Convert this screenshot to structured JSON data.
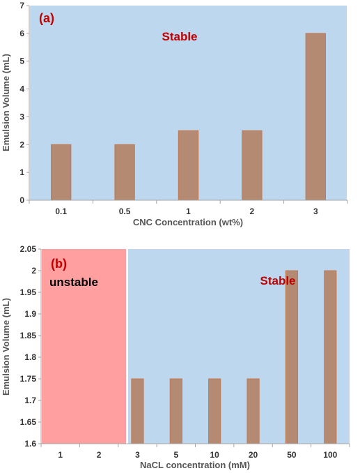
{
  "colors": {
    "stable_bg": "#bdd7ee",
    "unstable_bg": "#ff9f9f",
    "bar": "#b58a73",
    "bar_edge": "#c4784e",
    "red_text": "#c00000",
    "black_text": "#000000"
  },
  "chart_data": [
    {
      "type": "bar",
      "panel_label": "(a)",
      "xlabel": "CNC Concentration (wt%)",
      "ylabel": "Emulsion Volume (mL)",
      "categories": [
        "0.1",
        "0.5",
        "1",
        "2",
        "3"
      ],
      "values": [
        2,
        2,
        2.5,
        2.5,
        6
      ],
      "ylim": [
        0,
        7
      ],
      "yticks": [
        "0",
        "1",
        "2",
        "3",
        "4",
        "5",
        "6",
        "7"
      ],
      "regions": [
        {
          "label": "Stable",
          "from_category": 0,
          "to_category": 4,
          "color": "#bdd7ee",
          "label_color": "#c00000"
        }
      ],
      "grid": false
    },
    {
      "type": "bar",
      "panel_label": "(b)",
      "xlabel": "NaCL concentration (mM)",
      "ylabel": "Emulsion Volume (mL)",
      "categories": [
        "1",
        "2",
        "3",
        "5",
        "10",
        "20",
        "50",
        "100"
      ],
      "values": [
        null,
        null,
        1.75,
        1.75,
        1.75,
        1.75,
        2,
        2
      ],
      "ylim": [
        1.6,
        2.05
      ],
      "yticks": [
        "1.6",
        "1.65",
        "1.7",
        "1.75",
        "1.8",
        "1.85",
        "1.9",
        "1.95",
        "2",
        "2.05"
      ],
      "regions": [
        {
          "label": "unstable",
          "from_category": 0,
          "to_category": 1,
          "color": "#ff9f9f",
          "label_color": "#000000"
        },
        {
          "label": "Stable",
          "from_category": 2,
          "to_category": 7,
          "color": "#bdd7ee",
          "label_color": "#c00000"
        }
      ],
      "grid": false
    }
  ]
}
